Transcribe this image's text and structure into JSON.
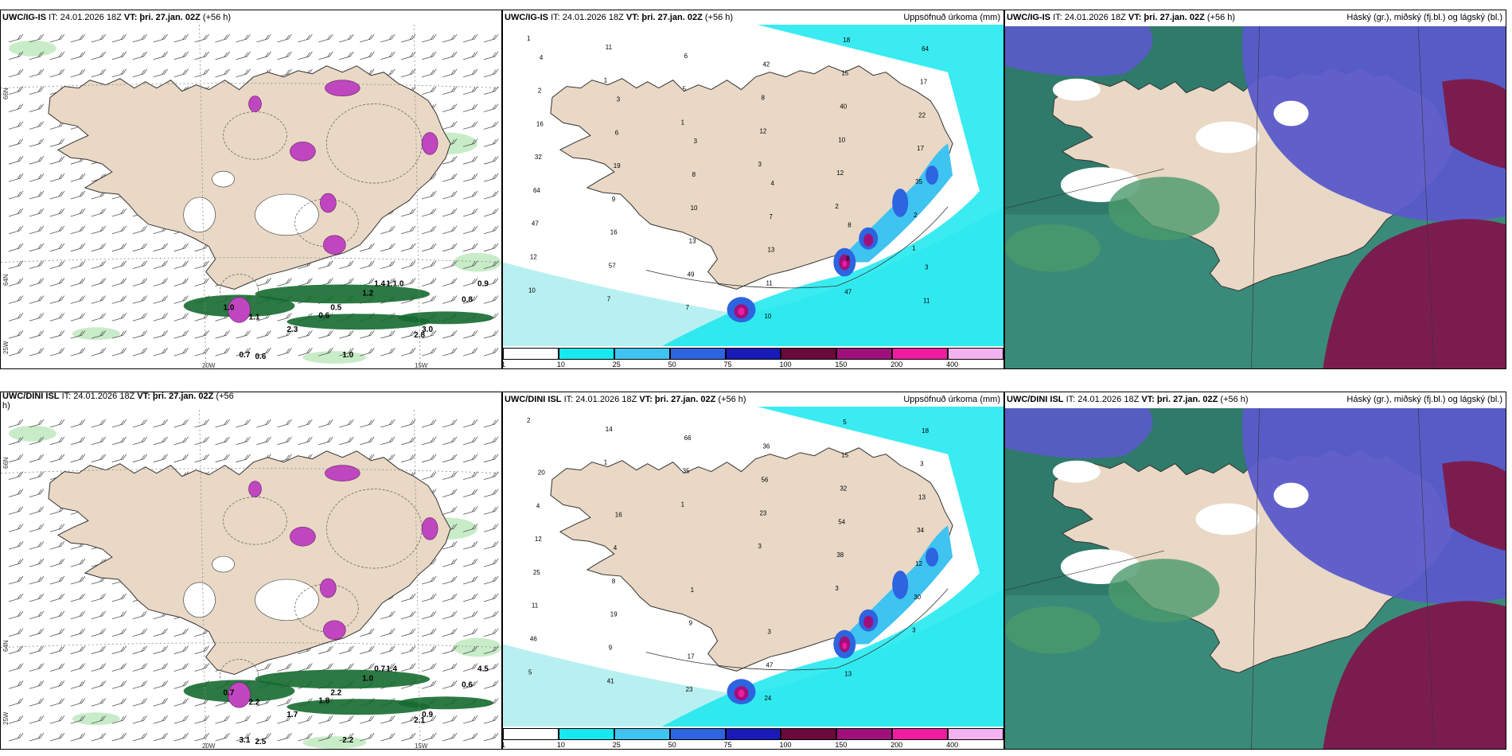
{
  "colors": {
    "land": "#e9d8c5",
    "sea_light": "#b8f0f2",
    "cyan": "#18e8ef",
    "sky": "#3fc3f0",
    "blue": "#2d64e0",
    "navy": "#1a1ab8",
    "maroon": "#6a0a3a",
    "magenta": "#a0107a",
    "pink": "#f01ba0",
    "lightpink": "#f5b2f0",
    "green_light": "#c8ecc8",
    "green_dark": "#156a30",
    "purple_hatch": "#c046c0",
    "cloud_high": "#5a5acb",
    "cloud_mid": "#7a1d4e",
    "cloud_low": "#3a8a7a"
  },
  "panels": {
    "top_left": {
      "model": "UWC/IG-IS",
      "it": "IT: 24.01.2026 18Z",
      "vt": "VT: þri. 27.jan. 02Z",
      "lead": "(+56 h)",
      "lat_labels": [
        "66N",
        "64N",
        "25W"
      ],
      "lon_labels": [
        "20W",
        "15W"
      ],
      "right_lat_labels": [
        "66N",
        "64N"
      ],
      "values": [
        "1.0",
        "1.1",
        "0.6",
        "0.5",
        "2.3",
        "2.8",
        "3.0",
        "1.2",
        "1.4",
        "1.1.0",
        "0.8",
        "0.9",
        "0.7",
        "0.6",
        "1.0"
      ]
    },
    "top_mid": {
      "model": "UWC/IG-IS",
      "it": "IT: 24.01.2026 18Z",
      "vt": "VT: þri. 27.jan. 02Z",
      "lead": "(+56 h)",
      "title_right": "Uppsöfnuð úrkoma (mm)",
      "colorbar_ticks": [
        "1",
        "10",
        "25",
        "50",
        "75",
        "100",
        "150",
        "200",
        "400"
      ],
      "values": [
        "1",
        "1",
        "1",
        "3",
        "2",
        "1",
        "10",
        "11",
        "5",
        "12",
        "12",
        "2",
        "12",
        "7",
        "6",
        "8",
        "10",
        "35",
        "47",
        "57",
        "7",
        "42",
        "40",
        "17",
        "64",
        "16",
        "49",
        "10",
        "15",
        "22",
        "32",
        "9",
        "13",
        "11",
        "18",
        "17",
        "16",
        "19",
        "10",
        "13",
        "47",
        "64",
        "2",
        "6",
        "8",
        "7",
        "8",
        "11",
        "4",
        "3",
        "3",
        "4",
        "8",
        "3"
      ]
    },
    "top_right": {
      "model": "UWC/IG-IS",
      "it": "IT: 24.01.2026 18Z",
      "vt": "VT: þri. 27.jan. 02Z",
      "lead": "(+56 h)",
      "title_right": "Háský (gr.), miðský (fj.bl.) og lágský (bl.)"
    },
    "bottom_left": {
      "model": "UWC/DINI ISL",
      "it": "IT: 24.01.2026 18Z",
      "vt": "VT: þri. 27.jan. 02Z",
      "lead": "(+56",
      "lead2": "h)",
      "lat_labels": [
        "66N",
        "64N",
        "25W"
      ],
      "lon_labels": [
        "20W",
        "15W"
      ],
      "values": [
        "0.7",
        "2.2",
        "1.8",
        "2.2",
        "1.7",
        "2.1",
        "0.9",
        "1.0",
        "0.7",
        "1.4",
        "0.6",
        "4.5",
        "3.1",
        "2.5",
        "2.2"
      ]
    },
    "bottom_mid": {
      "model": "UWC/DINI ISL",
      "it": "IT: 24.01.2026 18Z",
      "vt": "VT: þri. 27.jan. 02Z",
      "lead": "(+56 h)",
      "title_right": "Uppsöfnuð úrkoma (mm)",
      "colorbar_ticks": [
        "1",
        "10",
        "25",
        "50",
        "75",
        "100",
        "150",
        "200",
        "400"
      ],
      "values": [
        "2",
        "1",
        "1",
        "3",
        "3",
        "3",
        "5",
        "14",
        "35",
        "23",
        "38",
        "30",
        "46",
        "41",
        "66",
        "56",
        "54",
        "12",
        "11",
        "9",
        "23",
        "36",
        "32",
        "34",
        "25",
        "19",
        "17",
        "24",
        "15",
        "13",
        "12",
        "8",
        "9",
        "47",
        "5",
        "3",
        "4",
        "4",
        "1",
        "3",
        "13",
        "18",
        "20",
        "16"
      ]
    },
    "bottom_right": {
      "model": "UWC/DINI ISL",
      "it": "IT: 24.01.2026 18Z",
      "vt": "VT: þri. 27.jan. 02Z",
      "lead": "(+56 h)",
      "title_right": "Háský (gr.), miðský (fj.bl.) og lágský (bl.)"
    }
  }
}
